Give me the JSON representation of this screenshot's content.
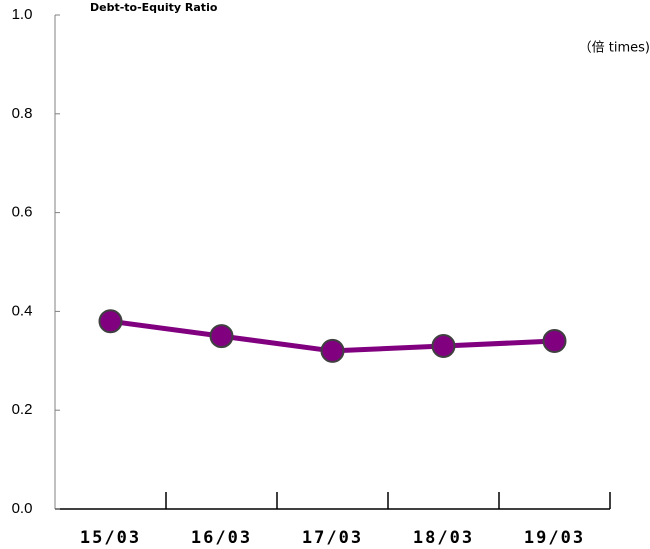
{
  "chart_data": {
    "type": "line",
    "title": "Debt-to-Equity Ratio",
    "unit": "（倍 times)",
    "categories": [
      "15/03",
      "16/03",
      "17/03",
      "18/03",
      "19/03"
    ],
    "series": [
      {
        "name": "Debt-to-Equity Ratio",
        "color": "#800080",
        "values": [
          0.38,
          0.35,
          0.32,
          0.33,
          0.34
        ]
      }
    ],
    "ylim": [
      0,
      1
    ],
    "yticks": [
      {
        "value": 0,
        "label": "0.0"
      },
      0.2,
      0.4,
      0.6,
      0.8,
      {
        "value": 1,
        "label": "1.0"
      }
    ]
  }
}
